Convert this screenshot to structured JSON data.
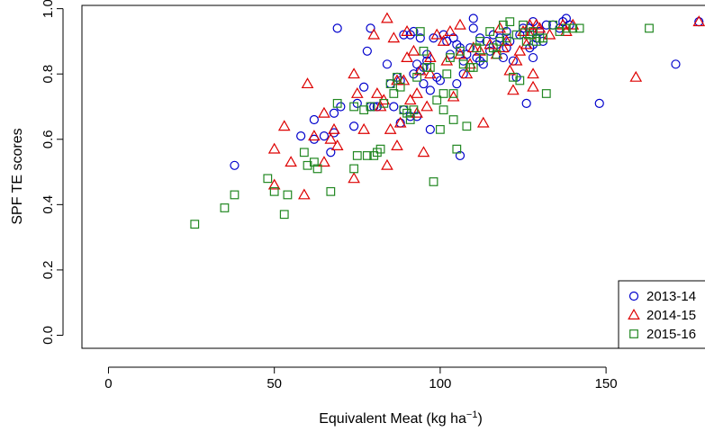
{
  "chart_data": {
    "type": "scatter",
    "xlabel": "Equivalent Meat (kg ha",
    "xlabel_unit_exponent": "−1",
    "xlabel_close": ")",
    "ylabel": "SPF TE scores",
    "xlim": [
      -8,
      182
    ],
    "ylim": [
      -0.04,
      1.01
    ],
    "x_ticks": [
      0,
      50,
      100,
      150
    ],
    "x_tick_labels": [
      "0",
      "50",
      "100",
      "150"
    ],
    "y_ticks": [
      0.0,
      0.2,
      0.4,
      0.6,
      0.8,
      1.0
    ],
    "y_tick_labels": [
      "0.0",
      "0.2",
      "0.4",
      "0.6",
      "0.8",
      "1.0"
    ],
    "grid": false,
    "legend_position": "bottom-right",
    "series": [
      {
        "name": "2013-14",
        "marker": "circle",
        "color": "#0000cc",
        "points": [
          [
            38,
            0.52
          ],
          [
            58,
            0.61
          ],
          [
            62,
            0.6
          ],
          [
            62,
            0.66
          ],
          [
            65,
            0.61
          ],
          [
            67,
            0.56
          ],
          [
            68,
            0.68
          ],
          [
            68,
            0.62
          ],
          [
            69,
            0.94
          ],
          [
            70,
            0.7
          ],
          [
            74,
            0.64
          ],
          [
            75,
            0.71
          ],
          [
            77,
            0.76
          ],
          [
            78,
            0.87
          ],
          [
            79,
            0.7
          ],
          [
            79,
            0.94
          ],
          [
            80,
            0.7
          ],
          [
            81,
            0.7
          ],
          [
            84,
            0.83
          ],
          [
            85,
            0.77
          ],
          [
            86,
            0.7
          ],
          [
            87,
            0.79
          ],
          [
            88,
            0.65
          ],
          [
            88,
            0.78
          ],
          [
            89,
            0.69
          ],
          [
            89,
            0.92
          ],
          [
            91,
            0.67
          ],
          [
            91,
            0.92
          ],
          [
            92,
            0.8
          ],
          [
            92,
            0.93
          ],
          [
            93,
            0.83
          ],
          [
            93,
            0.67
          ],
          [
            94,
            0.91
          ],
          [
            94,
            0.81
          ],
          [
            95,
            0.82
          ],
          [
            95,
            0.77
          ],
          [
            96,
            0.86
          ],
          [
            96,
            0.84
          ],
          [
            97,
            0.75
          ],
          [
            97,
            0.63
          ],
          [
            98,
            0.91
          ],
          [
            99,
            0.79
          ],
          [
            100,
            0.78
          ],
          [
            101,
            0.92
          ],
          [
            102,
            0.9
          ],
          [
            103,
            0.86
          ],
          [
            104,
            0.91
          ],
          [
            105,
            0.89
          ],
          [
            105,
            0.77
          ],
          [
            106,
            0.55
          ],
          [
            106,
            0.88
          ],
          [
            107,
            0.8
          ],
          [
            107,
            0.84
          ],
          [
            108,
            0.86
          ],
          [
            109,
            0.88
          ],
          [
            110,
            0.97
          ],
          [
            110,
            0.94
          ],
          [
            111,
            0.85
          ],
          [
            112,
            0.84
          ],
          [
            112,
            0.91
          ],
          [
            113,
            0.83
          ],
          [
            114,
            0.9
          ],
          [
            115,
            0.87
          ],
          [
            116,
            0.92
          ],
          [
            117,
            0.89
          ],
          [
            118,
            0.91
          ],
          [
            119,
            0.85
          ],
          [
            120,
            0.93
          ],
          [
            120,
            0.88
          ],
          [
            121,
            0.9
          ],
          [
            122,
            0.84
          ],
          [
            123,
            0.79
          ],
          [
            124,
            0.92
          ],
          [
            125,
            0.94
          ],
          [
            126,
            0.71
          ],
          [
            127,
            0.88
          ],
          [
            127,
            0.94
          ],
          [
            128,
            0.85
          ],
          [
            128,
            0.96
          ],
          [
            128,
            0.89
          ],
          [
            129,
            0.91
          ],
          [
            130,
            0.93
          ],
          [
            131,
            0.9
          ],
          [
            132,
            0.95
          ],
          [
            134,
            0.95
          ],
          [
            136,
            0.94
          ],
          [
            137,
            0.96
          ],
          [
            138,
            0.97
          ],
          [
            139,
            0.95
          ],
          [
            148,
            0.71
          ],
          [
            171,
            0.83
          ],
          [
            178,
            0.96
          ]
        ]
      },
      {
        "name": "2014-15",
        "marker": "triangle",
        "color": "#dd0000",
        "points": [
          [
            50,
            0.57
          ],
          [
            50,
            0.46
          ],
          [
            53,
            0.64
          ],
          [
            55,
            0.53
          ],
          [
            59,
            0.43
          ],
          [
            60,
            0.77
          ],
          [
            62,
            0.61
          ],
          [
            65,
            0.68
          ],
          [
            65,
            0.53
          ],
          [
            67,
            0.6
          ],
          [
            68,
            0.63
          ],
          [
            69,
            0.58
          ],
          [
            74,
            0.48
          ],
          [
            74,
            0.8
          ],
          [
            75,
            0.74
          ],
          [
            77,
            0.63
          ],
          [
            80,
            0.92
          ],
          [
            81,
            0.74
          ],
          [
            82,
            0.7
          ],
          [
            83,
            0.72
          ],
          [
            84,
            0.97
          ],
          [
            84,
            0.52
          ],
          [
            85,
            0.63
          ],
          [
            86,
            0.91
          ],
          [
            87,
            0.78
          ],
          [
            87,
            0.58
          ],
          [
            88,
            0.65
          ],
          [
            89,
            0.78
          ],
          [
            90,
            0.93
          ],
          [
            90,
            0.85
          ],
          [
            91,
            0.72
          ],
          [
            92,
            0.87
          ],
          [
            93,
            0.68
          ],
          [
            93,
            0.74
          ],
          [
            94,
            0.81
          ],
          [
            95,
            0.56
          ],
          [
            96,
            0.7
          ],
          [
            97,
            0.8
          ],
          [
            97,
            0.85
          ],
          [
            99,
            0.92
          ],
          [
            101,
            0.9
          ],
          [
            102,
            0.84
          ],
          [
            103,
            0.93
          ],
          [
            104,
            0.73
          ],
          [
            106,
            0.95
          ],
          [
            106,
            0.86
          ],
          [
            108,
            0.8
          ],
          [
            109,
            0.83
          ],
          [
            110,
            0.88
          ],
          [
            112,
            0.87
          ],
          [
            113,
            0.65
          ],
          [
            115,
            0.89
          ],
          [
            117,
            0.86
          ],
          [
            118,
            0.94
          ],
          [
            119,
            0.88
          ],
          [
            120,
            0.9
          ],
          [
            121,
            0.81
          ],
          [
            122,
            0.75
          ],
          [
            123,
            0.84
          ],
          [
            124,
            0.87
          ],
          [
            125,
            0.93
          ],
          [
            126,
            0.89
          ],
          [
            127,
            0.95
          ],
          [
            127,
            0.92
          ],
          [
            128,
            0.8
          ],
          [
            128,
            0.76
          ],
          [
            129,
            0.95
          ],
          [
            130,
            0.94
          ],
          [
            133,
            0.92
          ],
          [
            137,
            0.95
          ],
          [
            138,
            0.93
          ],
          [
            140,
            0.95
          ],
          [
            159,
            0.79
          ],
          [
            178,
            0.96
          ]
        ]
      },
      {
        "name": "2015-16",
        "marker": "square",
        "color": "#228822",
        "points": [
          [
            26,
            0.34
          ],
          [
            35,
            0.39
          ],
          [
            38,
            0.43
          ],
          [
            48,
            0.48
          ],
          [
            50,
            0.44
          ],
          [
            53,
            0.37
          ],
          [
            54,
            0.43
          ],
          [
            59,
            0.56
          ],
          [
            60,
            0.52
          ],
          [
            62,
            0.53
          ],
          [
            63,
            0.51
          ],
          [
            67,
            0.44
          ],
          [
            69,
            0.71
          ],
          [
            74,
            0.51
          ],
          [
            74,
            0.7
          ],
          [
            75,
            0.55
          ],
          [
            77,
            0.69
          ],
          [
            78,
            0.55
          ],
          [
            79,
            0.7
          ],
          [
            80,
            0.55
          ],
          [
            81,
            0.56
          ],
          [
            82,
            0.57
          ],
          [
            83,
            0.71
          ],
          [
            85,
            0.77
          ],
          [
            86,
            0.74
          ],
          [
            87,
            0.79
          ],
          [
            88,
            0.76
          ],
          [
            89,
            0.69
          ],
          [
            90,
            0.68
          ],
          [
            91,
            0.66
          ],
          [
            92,
            0.69
          ],
          [
            93,
            0.79
          ],
          [
            94,
            0.93
          ],
          [
            95,
            0.87
          ],
          [
            96,
            0.82
          ],
          [
            97,
            0.82
          ],
          [
            98,
            0.47
          ],
          [
            99,
            0.72
          ],
          [
            100,
            0.63
          ],
          [
            101,
            0.69
          ],
          [
            101,
            0.74
          ],
          [
            102,
            0.8
          ],
          [
            103,
            0.85
          ],
          [
            104,
            0.66
          ],
          [
            104,
            0.74
          ],
          [
            105,
            0.57
          ],
          [
            106,
            0.87
          ],
          [
            107,
            0.83
          ],
          [
            108,
            0.64
          ],
          [
            109,
            0.82
          ],
          [
            110,
            0.82
          ],
          [
            111,
            0.88
          ],
          [
            112,
            0.9
          ],
          [
            113,
            0.85
          ],
          [
            115,
            0.93
          ],
          [
            116,
            0.88
          ],
          [
            117,
            0.86
          ],
          [
            118,
            0.9
          ],
          [
            119,
            0.95
          ],
          [
            120,
            0.91
          ],
          [
            121,
            0.96
          ],
          [
            122,
            0.79
          ],
          [
            123,
            0.92
          ],
          [
            124,
            0.78
          ],
          [
            125,
            0.95
          ],
          [
            126,
            0.9
          ],
          [
            127,
            0.92
          ],
          [
            128,
            0.93
          ],
          [
            129,
            0.9
          ],
          [
            130,
            0.91
          ],
          [
            131,
            0.91
          ],
          [
            132,
            0.74
          ],
          [
            134,
            0.95
          ],
          [
            136,
            0.93
          ],
          [
            138,
            0.94
          ],
          [
            140,
            0.94
          ],
          [
            142,
            0.94
          ],
          [
            163,
            0.94
          ]
        ]
      }
    ]
  }
}
